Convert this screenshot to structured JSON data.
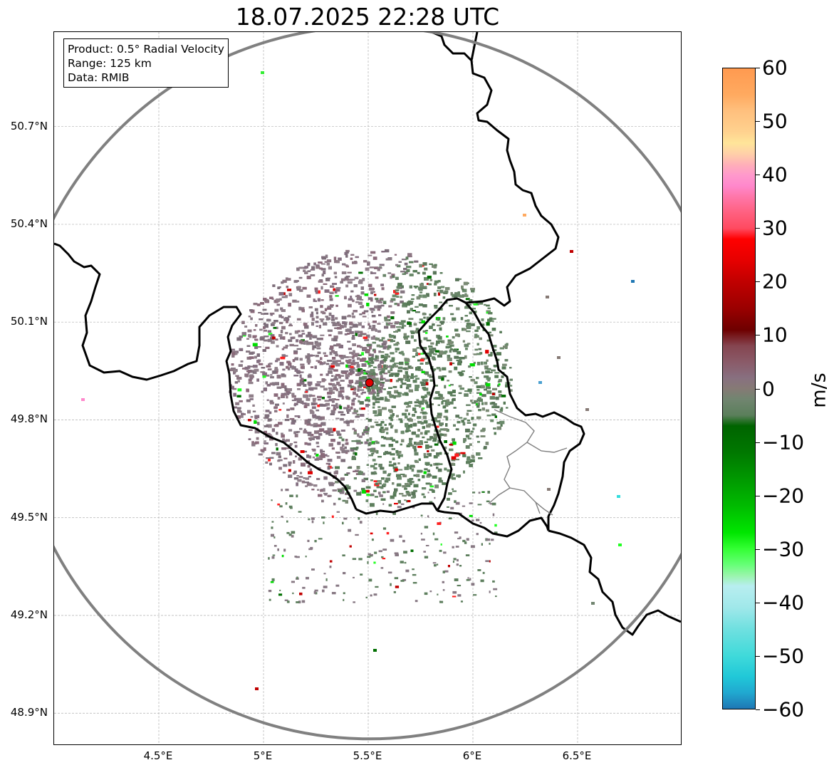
{
  "title": "18.07.2025 22:28 UTC",
  "info_box": {
    "product": "Product: 0.5° Radial Velocity",
    "range": "Range: 125 km",
    "data": "Data: RMIB"
  },
  "axes": {
    "lat_ticks": [
      "50.7°N",
      "50.4°N",
      "50.1°N",
      "49.8°N",
      "49.5°N",
      "49.2°N",
      "48.9°N"
    ],
    "lon_ticks": [
      "4.5°E",
      "5°E",
      "5.5°E",
      "6°E",
      "6.5°E"
    ],
    "lat_values": [
      50.7,
      50.4,
      50.1,
      49.8,
      49.5,
      49.2,
      48.9
    ],
    "lon_values": [
      4.5,
      5.0,
      5.5,
      6.0,
      6.5
    ],
    "lat_range": [
      48.8,
      50.99
    ],
    "lon_range": [
      4.0,
      7.0
    ]
  },
  "radar": {
    "site_lat": 49.914,
    "site_lon": 5.506,
    "range_km": 125,
    "marker_color": "#e00000",
    "range_ring_color": "#808080"
  },
  "colorbar": {
    "label": "m/s",
    "tick_labels": [
      "60",
      "50",
      "40",
      "30",
      "20",
      "10",
      "0",
      "−10",
      "−20",
      "−30",
      "−40",
      "−50",
      "−60"
    ],
    "tick_values": [
      60,
      50,
      40,
      30,
      20,
      10,
      0,
      -10,
      -20,
      -30,
      -40,
      -50,
      -60
    ],
    "vmin": -60,
    "vmax": 60,
    "stops": [
      {
        "v": 60,
        "color": "#ff9a50"
      },
      {
        "v": 55,
        "color": "#ffaa60"
      },
      {
        "v": 52,
        "color": "#ffc07e"
      },
      {
        "v": 48,
        "color": "#ffd28f"
      },
      {
        "v": 46,
        "color": "#ffe599"
      },
      {
        "v": 44,
        "color": "#ffd0a8"
      },
      {
        "v": 42,
        "color": "#ffb0b8"
      },
      {
        "v": 40,
        "color": "#ff99cc"
      },
      {
        "v": 38,
        "color": "#ff88cc"
      },
      {
        "v": 36,
        "color": "#ff77aa"
      },
      {
        "v": 33,
        "color": "#ff6080"
      },
      {
        "v": 30,
        "color": "#ff4a60"
      },
      {
        "v": 28,
        "color": "#ff0000"
      },
      {
        "v": 24,
        "color": "#e60000"
      },
      {
        "v": 20,
        "color": "#c00000"
      },
      {
        "v": 15,
        "color": "#9a0000"
      },
      {
        "v": 11,
        "color": "#6e0000"
      },
      {
        "v": 8,
        "color": "#854550"
      },
      {
        "v": 5,
        "color": "#8a5a68"
      },
      {
        "v": 2,
        "color": "#887080"
      },
      {
        "v": 0,
        "color": "#867a75"
      },
      {
        "v": -2,
        "color": "#718570"
      },
      {
        "v": -5,
        "color": "#5b7f5b"
      },
      {
        "v": -7,
        "color": "#006400"
      },
      {
        "v": -12,
        "color": "#007800"
      },
      {
        "v": -17,
        "color": "#009900"
      },
      {
        "v": -22,
        "color": "#00bb00"
      },
      {
        "v": -27,
        "color": "#00e600"
      },
      {
        "v": -30,
        "color": "#33ff33"
      },
      {
        "v": -33,
        "color": "#66ff77"
      },
      {
        "v": -35,
        "color": "#99f5aa"
      },
      {
        "v": -37,
        "color": "#b8eef0"
      },
      {
        "v": -41,
        "color": "#a0e8ea"
      },
      {
        "v": -45,
        "color": "#70e0e0"
      },
      {
        "v": -50,
        "color": "#40dada"
      },
      {
        "v": -54,
        "color": "#20c8d8"
      },
      {
        "v": -57,
        "color": "#20a8d0"
      },
      {
        "v": -60,
        "color": "#1f77b4"
      }
    ]
  }
}
